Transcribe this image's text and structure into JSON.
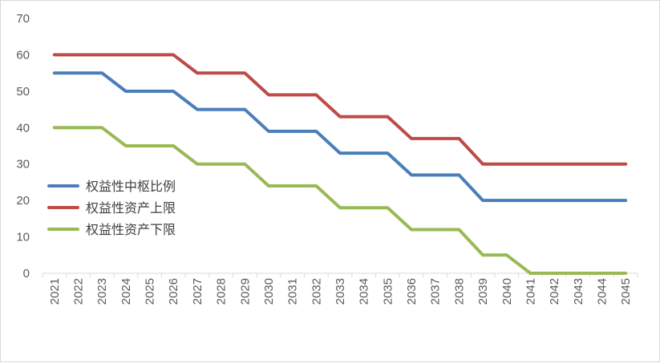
{
  "chart_data": {
    "type": "line",
    "title": "",
    "xlabel": "",
    "ylabel": "",
    "ylim": [
      0,
      70
    ],
    "yticks": [
      0,
      10,
      20,
      30,
      40,
      50,
      60,
      70
    ],
    "grid": false,
    "legend": "left-middle",
    "x": [
      "2021",
      "2022",
      "2023",
      "2024",
      "2025",
      "2026",
      "2027",
      "2028",
      "2029",
      "2030",
      "2031",
      "2032",
      "2033",
      "2034",
      "2035",
      "2036",
      "2037",
      "2038",
      "2039",
      "2040",
      "2041",
      "2042",
      "2043",
      "2044",
      "2045"
    ],
    "series": [
      {
        "name": "权益性中枢比例",
        "color": "#4a7ebb",
        "values": [
          55,
          55,
          55,
          50,
          50,
          50,
          45,
          45,
          45,
          39,
          39,
          39,
          33,
          33,
          33,
          27,
          27,
          27,
          20,
          20,
          20,
          20,
          20,
          20,
          20
        ]
      },
      {
        "name": "权益性资产上限",
        "color": "#be4b48",
        "values": [
          60,
          60,
          60,
          60,
          60,
          60,
          55,
          55,
          55,
          49,
          49,
          49,
          43,
          43,
          43,
          37,
          37,
          37,
          30,
          30,
          30,
          30,
          30,
          30,
          30
        ]
      },
      {
        "name": "权益性资产下限",
        "color": "#98b954",
        "values": [
          40,
          40,
          40,
          35,
          35,
          35,
          30,
          30,
          30,
          24,
          24,
          24,
          18,
          18,
          18,
          12,
          12,
          12,
          5,
          5,
          0,
          0,
          0,
          0,
          0
        ]
      }
    ]
  }
}
